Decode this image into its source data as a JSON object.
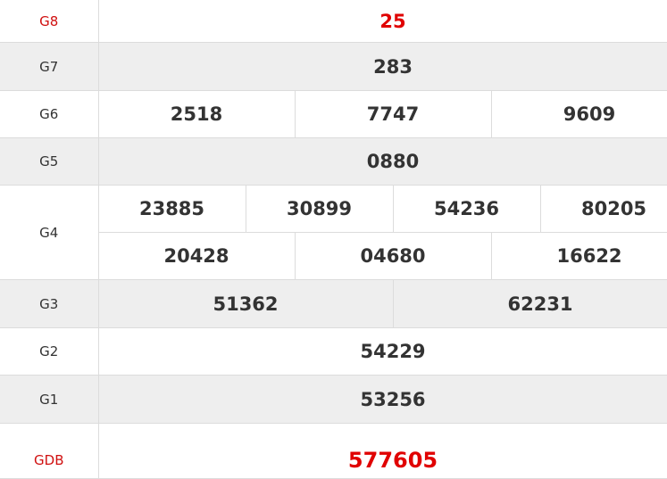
{
  "colors": {
    "accent_red": "#e00000",
    "stripe": "#eeeeee",
    "border": "#dcdcdc",
    "text": "#333333"
  },
  "prizes": {
    "g8": {
      "label": "G8",
      "numbers": [
        "25"
      ]
    },
    "g7": {
      "label": "G7",
      "numbers": [
        "283"
      ]
    },
    "g6": {
      "label": "G6",
      "numbers": [
        "2518",
        "7747",
        "9609"
      ]
    },
    "g5": {
      "label": "G5",
      "numbers": [
        "0880"
      ]
    },
    "g4": {
      "label": "G4",
      "numbers": [
        "23885",
        "30899",
        "54236",
        "80205",
        "20428",
        "04680",
        "16622"
      ]
    },
    "g3": {
      "label": "G3",
      "numbers": [
        "51362",
        "62231"
      ]
    },
    "g2": {
      "label": "G2",
      "numbers": [
        "54229"
      ]
    },
    "g1": {
      "label": "G1",
      "numbers": [
        "53256"
      ]
    },
    "gdb": {
      "label": "GDB",
      "numbers": [
        "577605"
      ]
    }
  }
}
